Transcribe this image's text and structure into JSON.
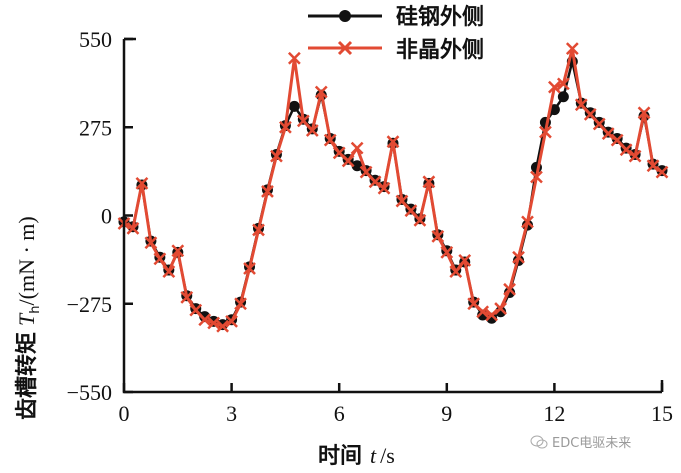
{
  "chart_data": {
    "type": "line",
    "title": "",
    "xlabel": "时间 t/s",
    "ylabel": "齿槽转矩 Th/(mN·m)",
    "xlim": [
      0,
      15
    ],
    "ylim": [
      -550,
      550
    ],
    "xticks": [
      0,
      3,
      6,
      9,
      12,
      15
    ],
    "yticks": [
      -550,
      -275,
      0,
      275,
      550
    ],
    "xtick_labels": [
      "0",
      "3",
      "6",
      "9",
      "12",
      "15"
    ],
    "ytick_labels": [
      "−550",
      "−275",
      "0",
      "275",
      "550"
    ],
    "grid": false,
    "legend_position": "top-center",
    "x": [
      0.0,
      0.25,
      0.5,
      0.75,
      1.0,
      1.25,
      1.5,
      1.75,
      2.0,
      2.25,
      2.5,
      2.75,
      3.0,
      3.25,
      3.5,
      3.75,
      4.0,
      4.25,
      4.5,
      4.75,
      5.0,
      5.25,
      5.5,
      5.75,
      6.0,
      6.25,
      6.5,
      6.75,
      7.0,
      7.25,
      7.5,
      7.75,
      8.0,
      8.25,
      8.5,
      8.75,
      9.0,
      9.25,
      9.5,
      9.75,
      10.0,
      10.25,
      10.5,
      10.75,
      11.0,
      11.25,
      11.5,
      11.75,
      12.0,
      12.25,
      12.5,
      12.75,
      13.0,
      13.25,
      13.5,
      13.75,
      14.0,
      14.25,
      14.5,
      14.75,
      15.0
    ],
    "series": [
      {
        "name": "硅钢外侧",
        "color": "#111111",
        "marker": "circle",
        "values": [
          -20,
          -35,
          95,
          -80,
          -130,
          -170,
          -115,
          -250,
          -290,
          -315,
          -330,
          -340,
          -325,
          -270,
          -160,
          -40,
          80,
          190,
          280,
          340,
          300,
          270,
          375,
          240,
          200,
          175,
          155,
          140,
          110,
          90,
          225,
          50,
          20,
          -10,
          100,
          -60,
          -110,
          -170,
          -145,
          -270,
          -310,
          -320,
          -300,
          -240,
          -140,
          -30,
          150,
          290,
          330,
          370,
          480,
          350,
          320,
          290,
          260,
          240,
          210,
          190,
          310,
          160,
          140
        ]
      },
      {
        "name": "非晶外侧",
        "color": "#E24A33",
        "marker": "x",
        "values": [
          -25,
          -40,
          100,
          -85,
          -135,
          -175,
          -110,
          -255,
          -295,
          -325,
          -335,
          -345,
          -330,
          -275,
          -165,
          -45,
          75,
          185,
          275,
          490,
          295,
          265,
          385,
          235,
          195,
          170,
          210,
          135,
          105,
          85,
          230,
          45,
          15,
          -15,
          105,
          -65,
          -115,
          -175,
          -140,
          -275,
          -300,
          -310,
          -290,
          -230,
          -130,
          -20,
          120,
          260,
          400,
          410,
          520,
          345,
          315,
          285,
          255,
          235,
          205,
          185,
          320,
          155,
          135
        ]
      }
    ],
    "annotations": []
  },
  "legend": {
    "items": [
      {
        "label": "硅钢外侧",
        "color": "#111111",
        "marker": "circle"
      },
      {
        "label": "非晶外侧",
        "color": "#E24A33",
        "marker": "x"
      }
    ]
  },
  "axes": {
    "x_title_main": "时间",
    "x_title_var": "t",
    "x_title_unit": "/s",
    "y_title_main": "齿槽转矩",
    "y_title_var": "T",
    "y_title_sub": "h",
    "y_title_unit": "/(mN · m)"
  },
  "watermark": {
    "text": "EDC电驱未来",
    "icon": "wechat-icon"
  }
}
